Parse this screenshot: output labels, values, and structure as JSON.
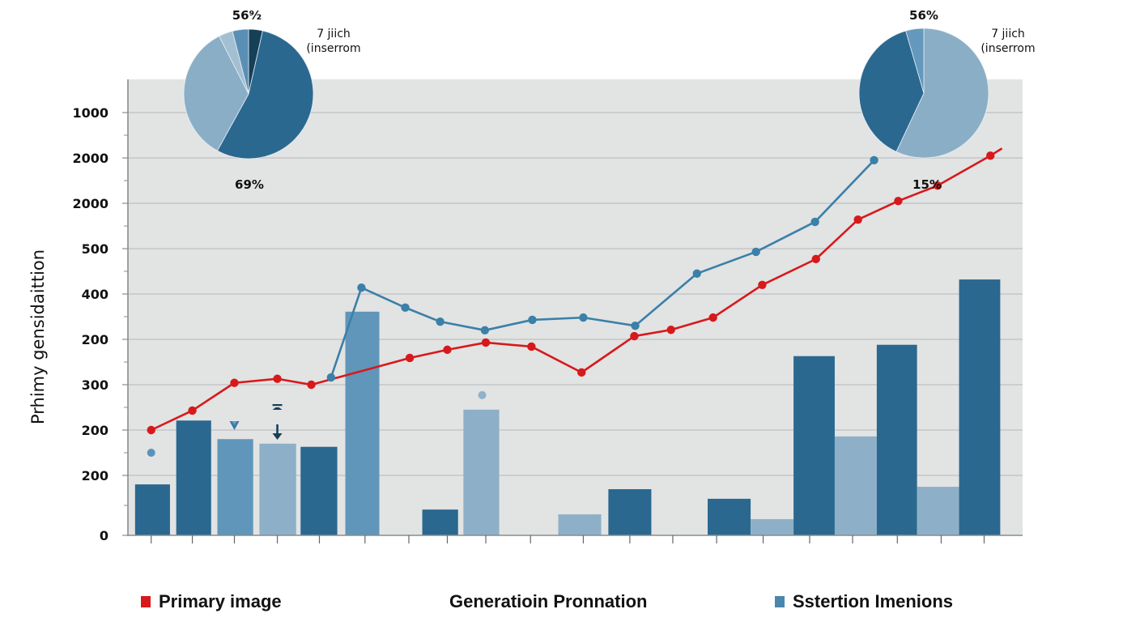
{
  "chart_data": {
    "type": "bar",
    "title": "",
    "xlabel": "",
    "ylabel": "Prhimy gensidaittion",
    "y_tick_labels": [
      "0",
      "200",
      "200",
      "300",
      "200",
      "400",
      "500",
      "2000",
      "2000",
      "1000"
    ],
    "y_units_note": "values expressed in gridline-index units: 0 = baseline '0', 1 = first gridline, 9 = top gridline '1000'",
    "ylim": [
      0,
      10.07
    ],
    "xlim": [
      0,
      100
    ],
    "grid": true,
    "x_ticks": [
      2.6,
      7.2,
      11.9,
      16.7,
      21.4,
      26.5,
      31.4,
      35.7,
      40.0,
      45.0,
      50.9,
      56.1,
      60.9,
      65.8,
      71.0,
      76.2,
      81.0,
      86.0,
      90.9,
      95.7
    ],
    "bars": [
      {
        "x0": 0.8,
        "x1": 4.7,
        "value": 0.85,
        "shade": "dark"
      },
      {
        "x0": 5.4,
        "x1": 9.3,
        "value": 2.21,
        "shade": "dark"
      },
      {
        "x0": 10.0,
        "x1": 14.0,
        "value": 1.8,
        "shade": "mid"
      },
      {
        "x0": 14.7,
        "x1": 18.8,
        "value": 1.7,
        "shade": "light"
      },
      {
        "x0": 19.3,
        "x1": 23.4,
        "value": 1.63,
        "shade": "dark"
      },
      {
        "x0": 24.3,
        "x1": 28.1,
        "value": 4.61,
        "shade": "mid"
      },
      {
        "x0": 32.9,
        "x1": 36.9,
        "value": 0.43,
        "shade": "dark"
      },
      {
        "x0": 37.5,
        "x1": 41.5,
        "value": 2.45,
        "shade": "light"
      },
      {
        "x0": 48.1,
        "x1": 52.9,
        "value": 0.35,
        "shade": "light"
      },
      {
        "x0": 53.7,
        "x1": 58.5,
        "value": 0.77,
        "shade": "dark"
      },
      {
        "x0": 64.8,
        "x1": 69.6,
        "value": 0.61,
        "shade": "dark"
      },
      {
        "x0": 69.6,
        "x1": 74.4,
        "value": 0.27,
        "shade": "light"
      },
      {
        "x0": 74.4,
        "x1": 79.0,
        "value": 3.63,
        "shade": "dark"
      },
      {
        "x0": 79.0,
        "x1": 83.7,
        "value": 1.86,
        "shade": "light"
      },
      {
        "x0": 83.7,
        "x1": 88.2,
        "value": 3.88,
        "shade": "dark"
      },
      {
        "x0": 88.2,
        "x1": 92.9,
        "value": 0.81,
        "shade": "light"
      },
      {
        "x0": 92.9,
        "x1": 97.5,
        "value": 5.32,
        "shade": "dark"
      }
    ],
    "series": [
      {
        "name": "Primary image",
        "color": "#d7191c",
        "x": [
          2.6,
          7.2,
          11.9,
          16.7,
          20.5,
          31.5,
          35.7,
          40.0,
          45.1,
          50.7,
          56.6,
          60.7,
          65.4,
          70.9,
          76.9,
          81.6,
          86.1,
          90.5,
          96.4
        ],
        "values": [
          2.0,
          2.43,
          3.04,
          3.13,
          3.0,
          3.59,
          3.77,
          3.93,
          3.84,
          3.27,
          4.07,
          4.21,
          4.48,
          5.2,
          5.77,
          6.64,
          7.05,
          7.39,
          8.05
        ],
        "line_end": {
          "x": 97.7,
          "value": 8.21
        }
      },
      {
        "name": "Sstertion Imenions",
        "color": "#3a80a8",
        "x": [
          22.7,
          26.1,
          31.0,
          34.9,
          39.9,
          45.2,
          50.9,
          56.7,
          63.6,
          70.2,
          76.8,
          83.4
        ],
        "values": [
          3.16,
          5.14,
          4.7,
          4.39,
          4.2,
          4.43,
          4.48,
          4.3,
          5.45,
          5.93,
          6.59,
          7.95
        ]
      }
    ],
    "isolated_points": [
      {
        "x": 2.6,
        "value": 1.5,
        "color": "#5a93ba"
      },
      {
        "x": 39.6,
        "value": 2.77,
        "color": "#8fb2c9"
      }
    ],
    "markers": [
      {
        "type": "triangle-down",
        "x": 11.9,
        "value": 2.4
      },
      {
        "type": "arrow-down-with-cap",
        "x": 16.7,
        "value": 2.5
      }
    ],
    "colors": {
      "dark": "#2a6890",
      "mid": "#6096ba",
      "light": "#8db0c8",
      "plot_bg": "#e2e3e3",
      "grid": "#c4c6c7",
      "axis": "#8a8c8e"
    },
    "pies": [
      {
        "name": "left-pie",
        "top_label": "56⁹⁄₂",
        "side_label_line1": "7 jiich",
        "side_label_line2": "(inserrom",
        "bottom_label": "69%",
        "slices": [
          {
            "fraction": 0.035,
            "color": "#163f58"
          },
          {
            "fraction": 0.545,
            "color": "#2a6890"
          },
          {
            "fraction": 0.345,
            "color": "#8aaec6"
          },
          {
            "fraction": 0.035,
            "color": "#a3c0d3"
          },
          {
            "fraction": 0.04,
            "color": "#5a8fb5"
          }
        ]
      },
      {
        "name": "right-pie",
        "top_label": "56%",
        "side_label_line1": "7 jiich",
        "side_label_line2": "(inserrom",
        "bottom_label": "15%",
        "slices": [
          {
            "fraction": 0.57,
            "color": "#8aaec6"
          },
          {
            "fraction": 0.385,
            "color": "#2a6890"
          },
          {
            "fraction": 0.045,
            "color": "#6499bd"
          }
        ]
      }
    ],
    "legend": [
      {
        "label": "Primary image",
        "color": "#d7191c"
      },
      {
        "label": "Generatioin Pronnation",
        "color": null
      },
      {
        "label": "Sstertion Imenions",
        "color": "#4a86ad"
      }
    ],
    "legend_position": "bottom"
  }
}
